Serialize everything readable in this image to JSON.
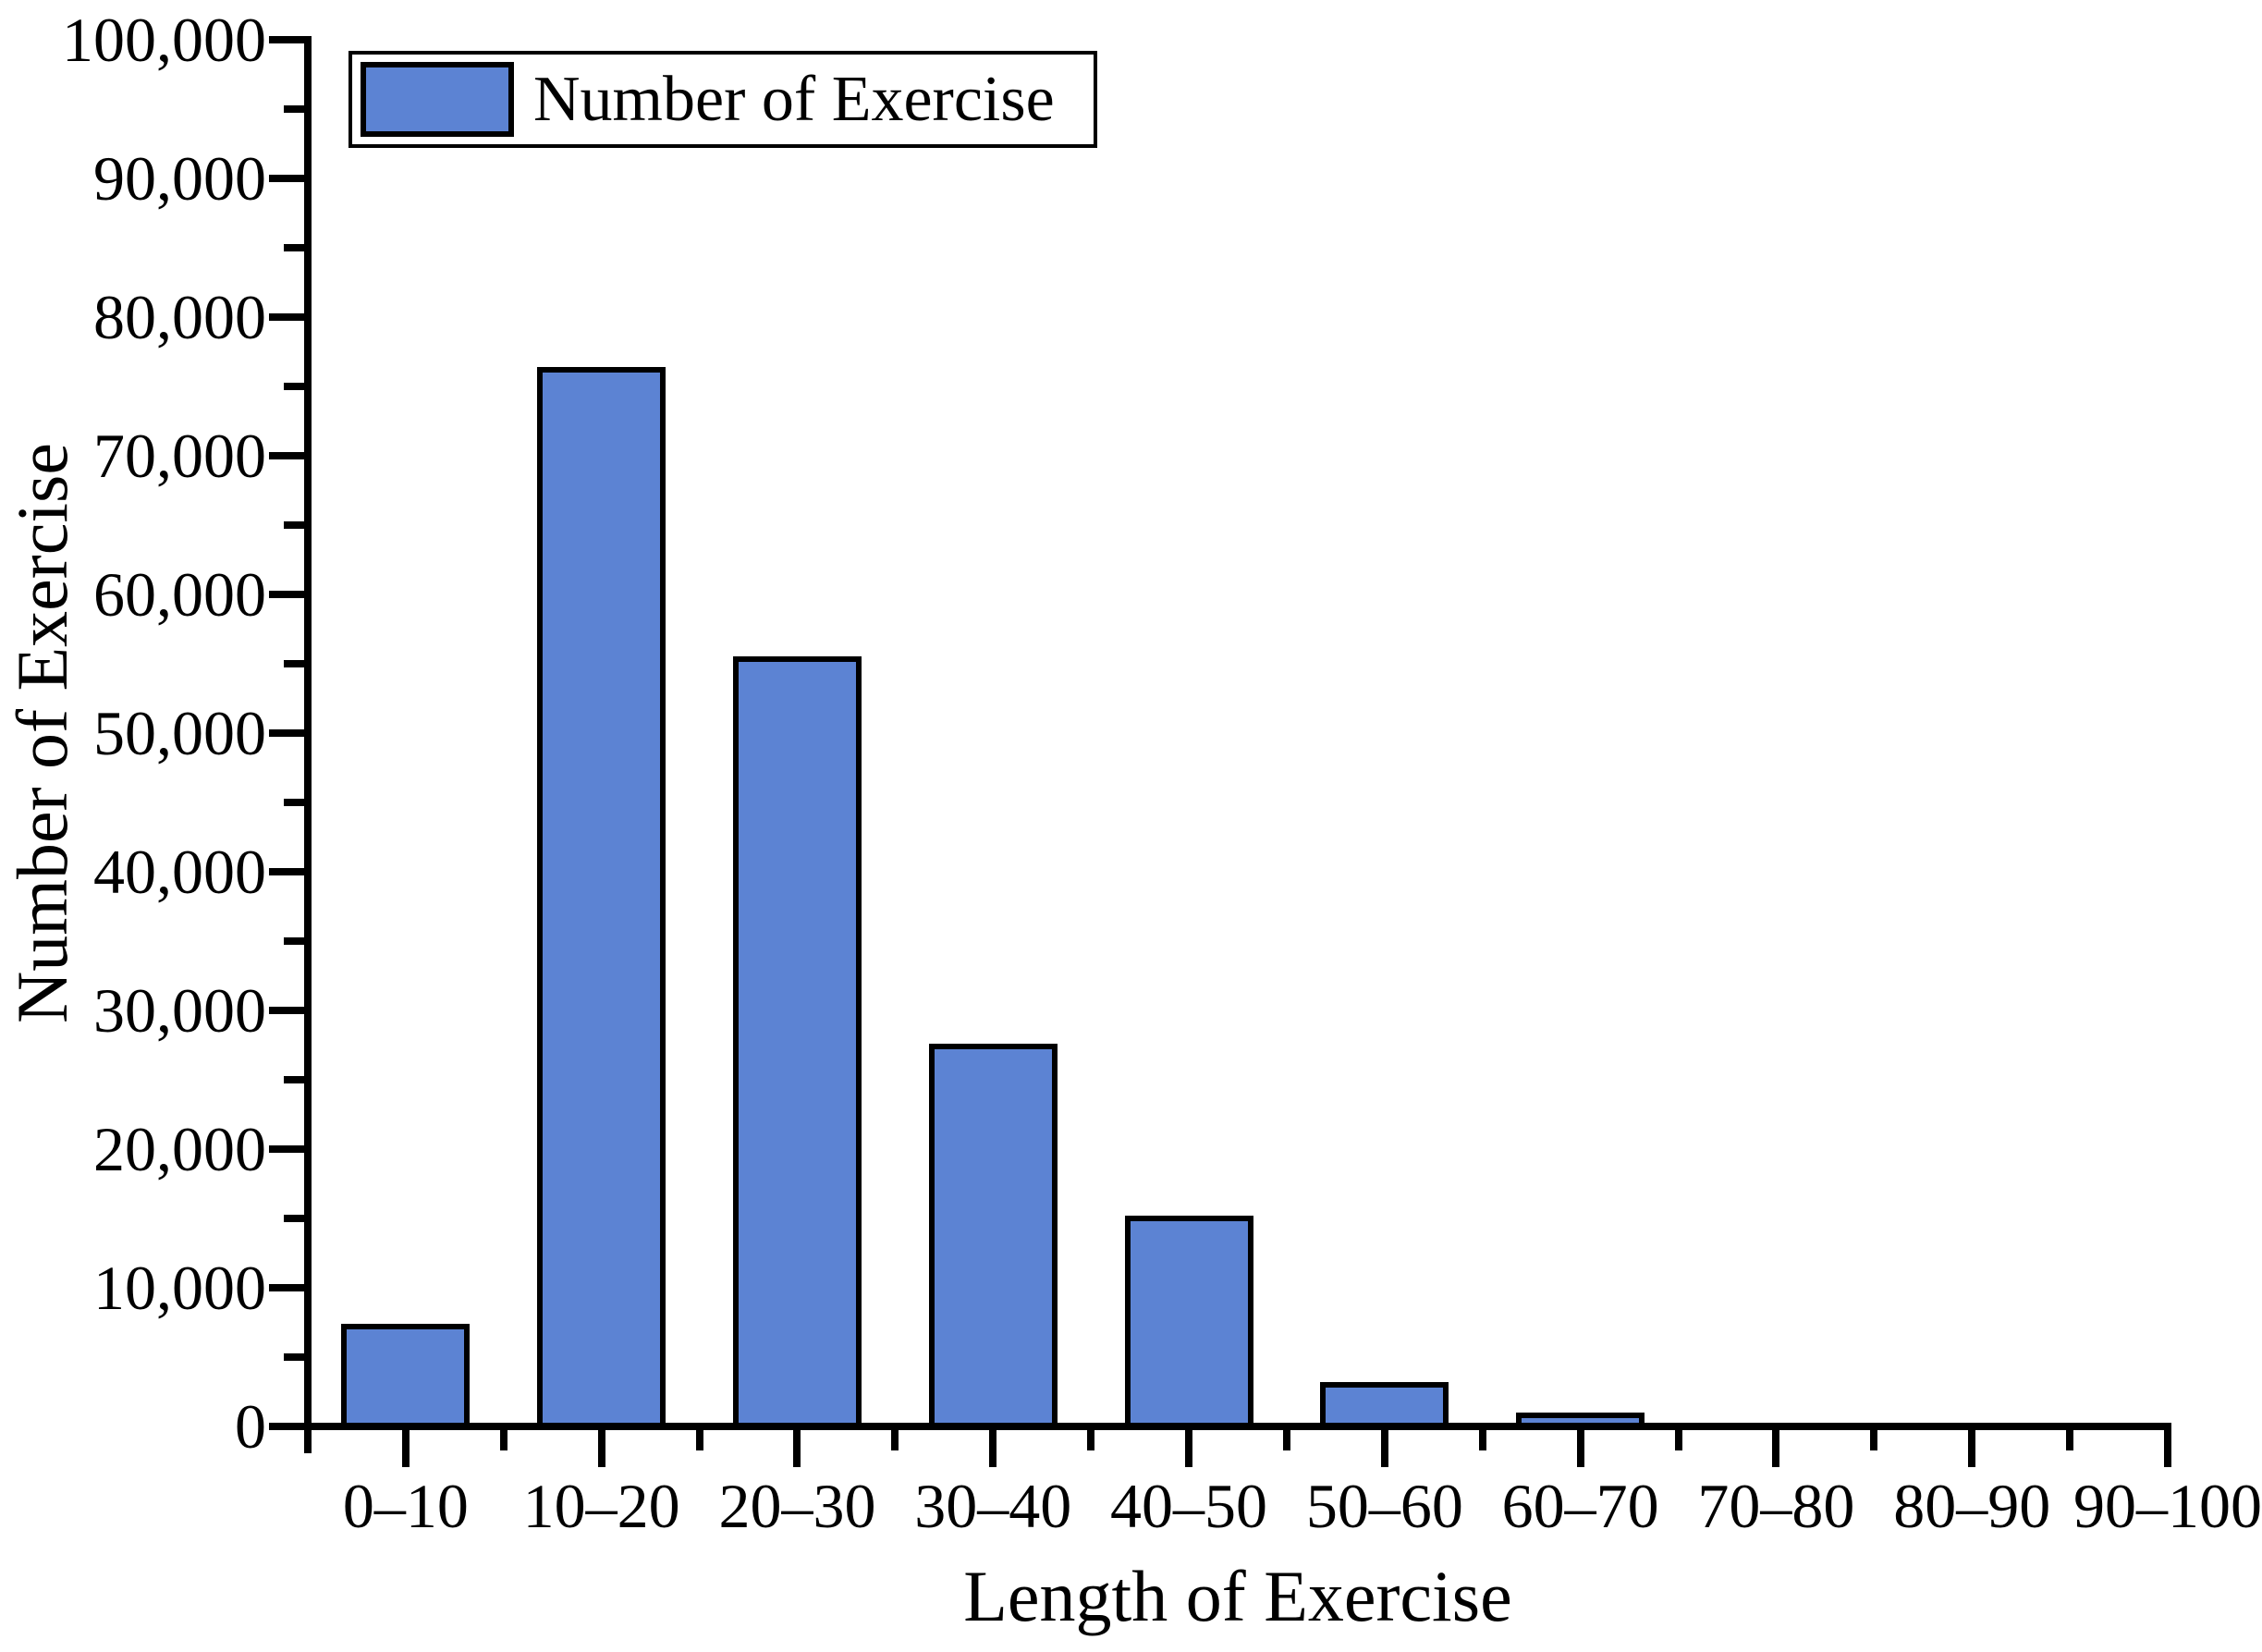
{
  "chart_data": {
    "type": "bar",
    "title": "",
    "categories": [
      "0–10",
      "10–20",
      "20–30",
      "30–40",
      "40–50",
      "50–60",
      "60–70",
      "70–80",
      "80–90",
      "90–100"
    ],
    "values": [
      7400,
      76400,
      55500,
      27600,
      15200,
      3200,
      1000,
      0,
      0,
      0
    ],
    "series": [
      {
        "name": "Number of Exercise",
        "values": [
          7400,
          76400,
          55500,
          27600,
          15200,
          3200,
          1000,
          0,
          0,
          0
        ]
      }
    ],
    "xlabel": "Length of Exercise",
    "ylabel": "Number of Exercise",
    "ylim": [
      0,
      100000
    ],
    "y_major_step": 10000,
    "y_minor_step": 5000,
    "y_tick_labels": [
      "0",
      "10,000",
      "20,000",
      "30,000",
      "40,000",
      "50,000",
      "60,000",
      "70,000",
      "80,000",
      "90,000",
      "100,000"
    ],
    "grid": false,
    "legend_position": "top-left",
    "bar_color": "#5C83D3",
    "bar_border_color": "#000000",
    "axis_color": "#000000",
    "background_color": "#FFFFFF"
  },
  "legend": {
    "label": "Number of Exercise"
  },
  "axes": {
    "x_title": "Length of Exercise",
    "y_title": "Number of Exercise"
  }
}
